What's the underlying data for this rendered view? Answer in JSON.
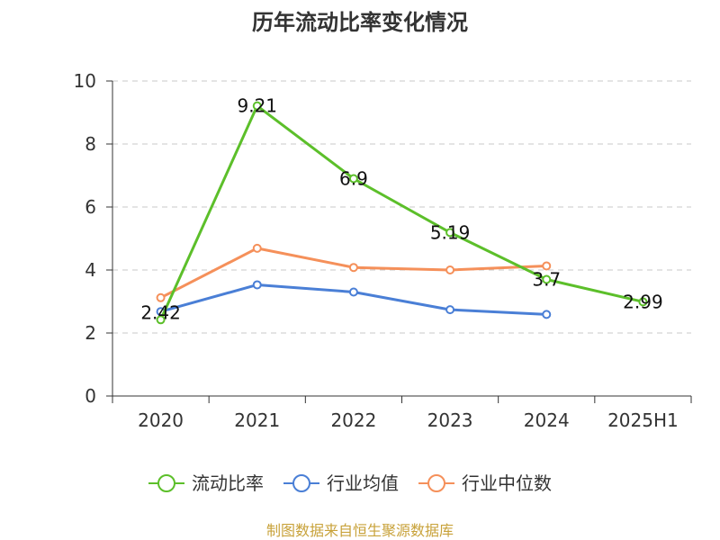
{
  "chart_data": {
    "type": "line",
    "title": "历年流动比率变化情况",
    "categories": [
      "2020",
      "2021",
      "2022",
      "2023",
      "2024",
      "2025H1"
    ],
    "ylim": [
      0,
      10
    ],
    "yticks": [
      0,
      2,
      4,
      6,
      8,
      10
    ],
    "grid": true,
    "legend_position": "bottom",
    "series": [
      {
        "name": "流动比率",
        "color": "#5cbf2a",
        "values": [
          2.42,
          9.21,
          6.9,
          5.19,
          3.7,
          2.99
        ],
        "labels": [
          "2.42",
          "9.21",
          "6.9",
          "5.19",
          "3.7",
          "2.99"
        ]
      },
      {
        "name": "行业均值",
        "color": "#4a7fd6",
        "values": [
          2.68,
          3.53,
          3.3,
          2.74,
          2.59,
          null
        ]
      },
      {
        "name": "行业中位数",
        "color": "#f5905a",
        "values": [
          3.12,
          4.69,
          4.08,
          4.0,
          4.13,
          null
        ]
      }
    ],
    "source": "制图数据来自恒生聚源数据库"
  }
}
